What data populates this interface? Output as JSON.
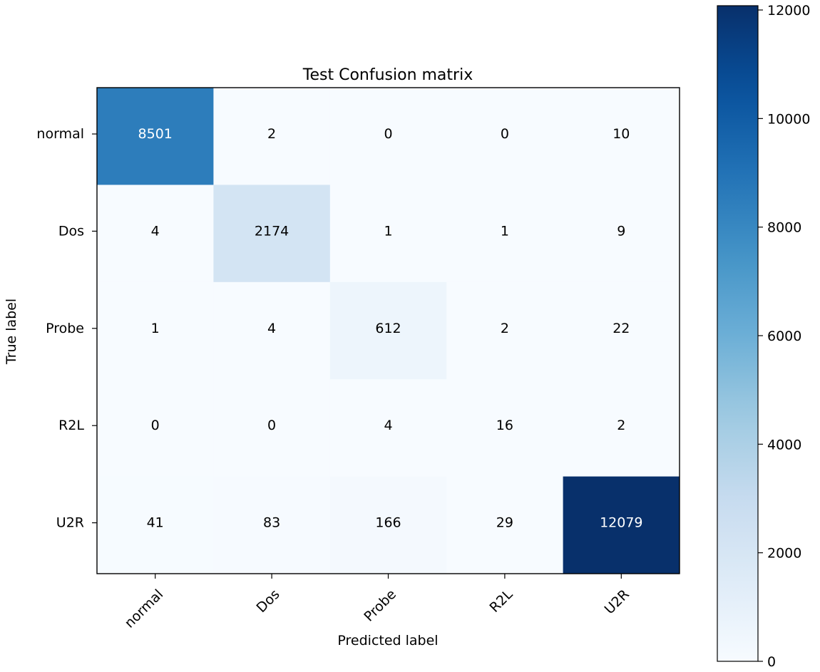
{
  "chart_data": {
    "type": "heatmap",
    "title": "Test Confusion matrix",
    "xlabel": "Predicted label",
    "ylabel": "True label",
    "row_labels": [
      "normal",
      "Dos",
      "Probe",
      "R2L",
      "U2R"
    ],
    "col_labels": [
      "normal",
      "Dos",
      "Probe",
      "R2L",
      "U2R"
    ],
    "matrix": [
      [
        8501,
        2,
        0,
        0,
        10
      ],
      [
        4,
        2174,
        1,
        1,
        9
      ],
      [
        1,
        4,
        612,
        2,
        22
      ],
      [
        0,
        0,
        4,
        16,
        2
      ],
      [
        41,
        83,
        166,
        29,
        12079
      ]
    ],
    "colormap": "Blues",
    "colorbar": {
      "min": 0,
      "max": 12079,
      "ticks": [
        0,
        2000,
        4000,
        6000,
        8000,
        10000,
        12000
      ]
    },
    "colors": {
      "cmap_low": "#f7fbff",
      "cmap_high": "#08306b",
      "text_dark": "#000000",
      "text_light": "#ffffff"
    }
  }
}
